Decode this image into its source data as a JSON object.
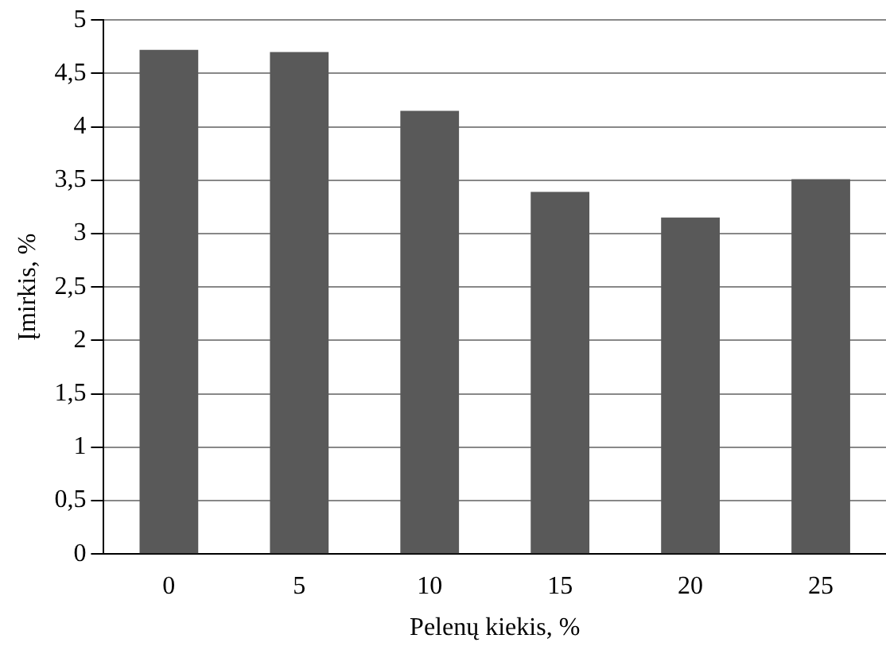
{
  "chart_data": {
    "type": "bar",
    "xlabel": "Pelenų kiekis, %",
    "ylabel": "Įmirkis, %",
    "categories": [
      "0",
      "5",
      "10",
      "15",
      "20",
      "25"
    ],
    "values": [
      4.72,
      4.7,
      4.15,
      3.39,
      3.15,
      3.51
    ],
    "color": "#595959",
    "ylim": [
      0,
      5
    ],
    "yticks": [
      0,
      {
        "value": 0.5,
        "label": "0,5"
      },
      1,
      {
        "value": 1.5,
        "label": "1,5"
      },
      2,
      {
        "value": 2.5,
        "label": "2,5"
      },
      3,
      {
        "value": 3.5,
        "label": "3,5"
      },
      4,
      {
        "value": 4.5,
        "label": "4,5"
      },
      5
    ],
    "grid": "y"
  }
}
